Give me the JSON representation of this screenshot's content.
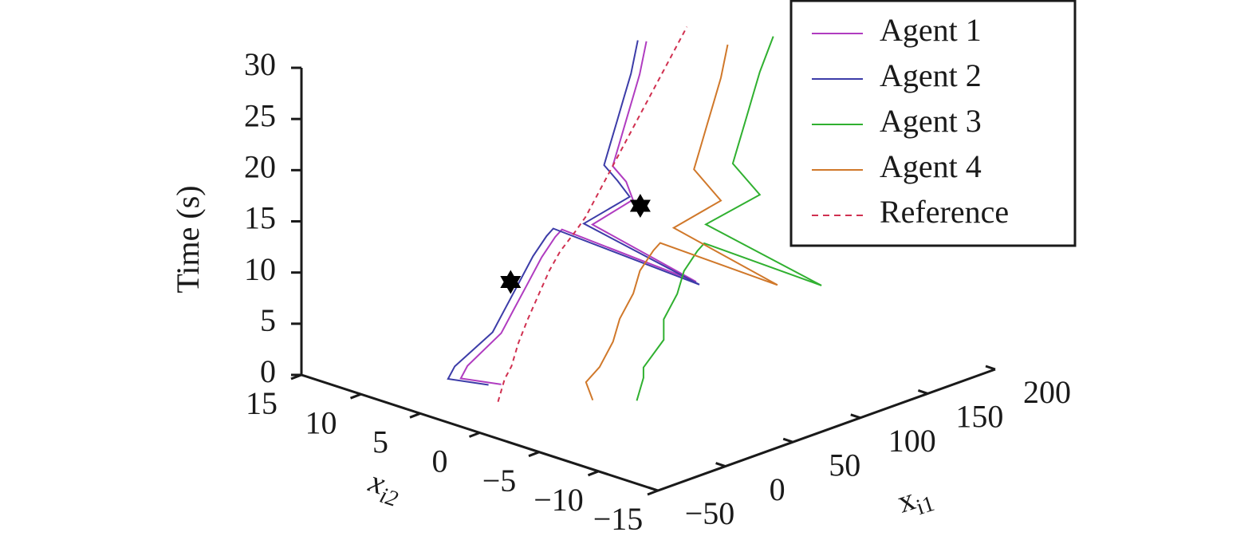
{
  "chart_data": {
    "type": "line3d",
    "xlabel": [
      "x",
      "i1"
    ],
    "ylabel": [
      "x",
      "i2"
    ],
    "zlabel": "Time (s)",
    "xlim": [
      -50,
      200
    ],
    "ylim": [
      -15,
      15
    ],
    "zlim": [
      0,
      30
    ],
    "xticks": [
      {
        "value": -50,
        "label": "−50"
      },
      0,
      50,
      100,
      150,
      200
    ],
    "yticks": [
      15,
      10,
      5,
      0,
      {
        "value": -5,
        "label": "−5"
      },
      {
        "value": -10,
        "label": "−10"
      },
      {
        "value": -15,
        "label": "−15"
      }
    ],
    "zticks": [
      0,
      5,
      10,
      15,
      20,
      25,
      30
    ],
    "legend": "top-right",
    "series": [
      {
        "name": "Agent 1",
        "color": "#b03cc0",
        "dash": false,
        "x": [
          10,
          -20,
          -15,
          10,
          20,
          30,
          40,
          50,
          55,
          40,
          60,
          90,
          85,
          75,
          80,
          85,
          90,
          95,
          100
        ],
        "y": [
          5,
          5,
          5,
          5,
          5,
          5,
          5,
          5,
          5,
          -8,
          3,
          3,
          3,
          3,
          3,
          3,
          3,
          3,
          3
        ],
        "z": [
          0,
          2,
          3,
          5,
          7,
          9,
          11,
          12.5,
          13,
          13.5,
          14,
          15,
          17,
          19,
          21,
          23,
          25,
          27,
          30
        ]
      },
      {
        "name": "Agent 2",
        "color": "#3c3ca8",
        "dash": false,
        "x": [
          5,
          -25,
          -20,
          8,
          18,
          28,
          38,
          48,
          53,
          38,
          58,
          92,
          83,
          73,
          78,
          83,
          88,
          93,
          98
        ],
        "y": [
          5.5,
          5.5,
          5.5,
          5.5,
          5.5,
          5.5,
          5.5,
          5.5,
          5.5,
          -8.5,
          3.5,
          3.5,
          3.5,
          3.5,
          3.5,
          3.5,
          3.5,
          3.5,
          3.5
        ],
        "z": [
          0,
          2,
          3,
          5,
          7,
          9,
          11,
          12.5,
          13,
          13.5,
          14,
          15,
          17,
          19,
          21,
          23,
          25,
          27,
          30
        ]
      },
      {
        "name": "Agent 3",
        "color": "#30b030",
        "dash": false,
        "x": [
          40,
          45,
          45,
          60,
          60,
          70,
          75,
          85,
          90,
          80,
          100,
          140,
          130,
          120,
          125,
          130,
          135,
          140,
          150
        ],
        "y": [
          -3,
          -3,
          -3,
          -3,
          -3,
          -3,
          -3,
          -3,
          -3,
          -14,
          -2,
          -2,
          -2,
          -2,
          -2,
          -2,
          -2,
          -2,
          -2
        ],
        "z": [
          0,
          2,
          3,
          5,
          7,
          9,
          11,
          12.5,
          13,
          13.5,
          14,
          15,
          17,
          19,
          21,
          23,
          25,
          27,
          30
        ]
      },
      {
        "name": "Agent 4",
        "color": "#d0782a",
        "dash": false,
        "x": [
          25,
          20,
          30,
          40,
          45,
          55,
          60,
          70,
          75,
          65,
          85,
          120,
          110,
          100,
          105,
          110,
          115,
          120,
          125
        ],
        "y": [
          -1,
          -1,
          -1,
          -1,
          -1,
          -1,
          -1,
          -1,
          -1,
          -12,
          -1,
          -1,
          -1,
          -1,
          -1,
          -1,
          -1,
          -1,
          -1
        ],
        "z": [
          0,
          2,
          3,
          5,
          7,
          9,
          11,
          12.5,
          13,
          13.5,
          14,
          15,
          17,
          19,
          21,
          23,
          25,
          27,
          30
        ]
      },
      {
        "name": "Reference",
        "color": "#d03050",
        "dash": true,
        "x": [
          -10,
          -5,
          0,
          5,
          12,
          20,
          28,
          36,
          40,
          44,
          48,
          55,
          65,
          75,
          85,
          95,
          105,
          115,
          130
        ],
        "y": [
          3,
          3,
          3,
          3,
          3,
          3,
          3,
          3,
          3,
          3,
          3,
          3,
          3,
          3,
          3,
          3,
          3,
          3,
          3
        ],
        "z": [
          0,
          2,
          3,
          5,
          7,
          9,
          11,
          12.5,
          13,
          13.5,
          14,
          15,
          17,
          19,
          21,
          23,
          25,
          27,
          30
        ]
      }
    ],
    "markers": {
      "color": "#000000",
      "x": [
        61,
        25
      ],
      "y": [
        10,
        -5
      ],
      "z": [
        5.7,
        20.5
      ]
    }
  }
}
